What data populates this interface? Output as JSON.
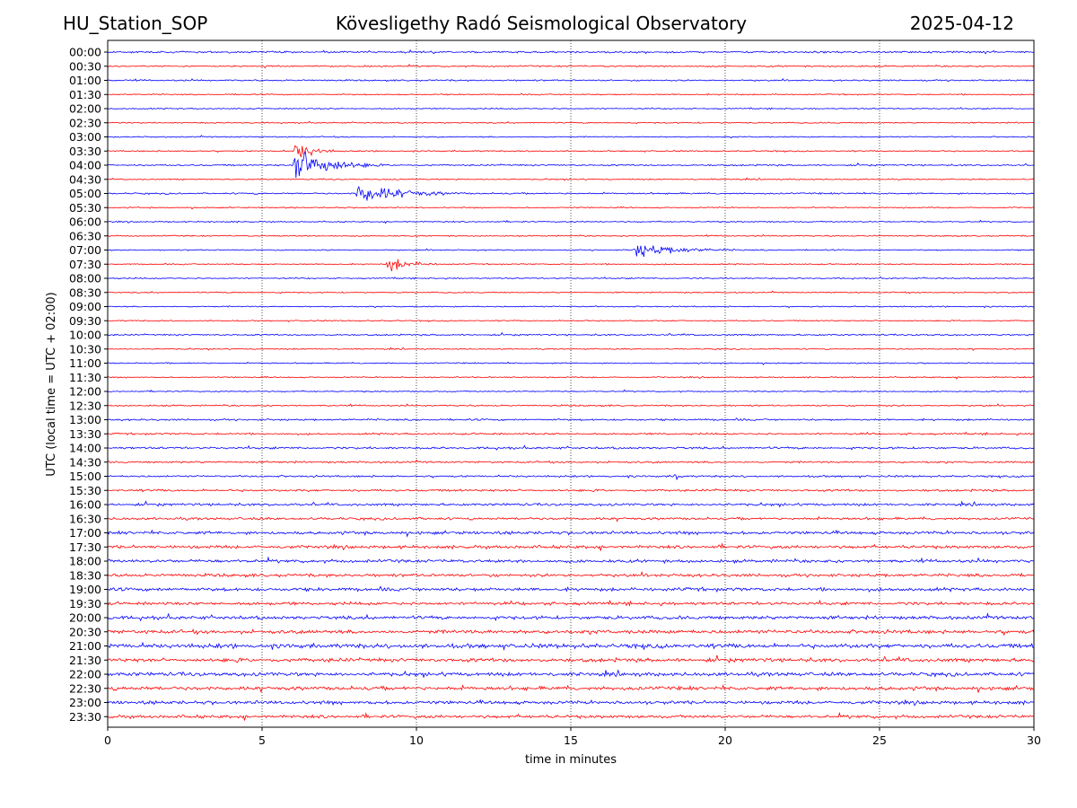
{
  "header": {
    "station": "HU_Station_SOP",
    "title": "Kövesligethy Radó Seismological Observatory",
    "date": "2025-04-12"
  },
  "chart_data": {
    "type": "line",
    "subtype": "helicorder",
    "title": "Kövesligethy Radó Seismological Observatory",
    "xlabel": "time in minutes",
    "ylabel": "UTC (local time = UTC + 02:00)",
    "xlim": [
      0,
      30
    ],
    "x_ticks": [
      0,
      5,
      10,
      15,
      20,
      25,
      30
    ],
    "grid": "vertical dotted at x ticks",
    "colors": [
      "#0000ff",
      "#ff0000"
    ],
    "rows": [
      "00:00",
      "00:30",
      "01:00",
      "01:30",
      "02:00",
      "02:30",
      "03:00",
      "03:30",
      "04:00",
      "04:30",
      "05:00",
      "05:30",
      "06:00",
      "06:30",
      "07:00",
      "07:30",
      "08:00",
      "08:30",
      "09:00",
      "09:30",
      "10:00",
      "10:30",
      "11:00",
      "11:30",
      "12:00",
      "12:30",
      "13:00",
      "13:30",
      "14:00",
      "14:30",
      "15:00",
      "15:30",
      "16:00",
      "16:30",
      "17:00",
      "17:30",
      "18:00",
      "18:30",
      "19:00",
      "19:30",
      "20:00",
      "20:30",
      "21:00",
      "21:30",
      "22:00",
      "22:30",
      "23:00",
      "23:30"
    ],
    "noise_level_by_row": [
      0.3,
      0.25,
      0.25,
      0.2,
      0.2,
      0.2,
      0.2,
      0.2,
      0.25,
      0.2,
      0.25,
      0.2,
      0.2,
      0.2,
      0.2,
      0.2,
      0.2,
      0.2,
      0.2,
      0.2,
      0.25,
      0.2,
      0.2,
      0.2,
      0.2,
      0.25,
      0.3,
      0.3,
      0.35,
      0.3,
      0.3,
      0.35,
      0.4,
      0.4,
      0.5,
      0.5,
      0.5,
      0.5,
      0.55,
      0.5,
      0.55,
      0.6,
      0.7,
      0.6,
      0.6,
      0.6,
      0.55,
      0.5
    ],
    "events": [
      {
        "row": "03:30",
        "start_min": 6.0,
        "end_min": 8.0,
        "peak_amplitude": 1.0
      },
      {
        "row": "04:00",
        "start_min": 6.0,
        "end_min": 9.0,
        "peak_amplitude": 2.6
      },
      {
        "row": "05:00",
        "start_min": 8.0,
        "end_min": 13.0,
        "peak_amplitude": 1.0
      },
      {
        "row": "07:00",
        "start_min": 17.0,
        "end_min": 22.0,
        "peak_amplitude": 0.7
      },
      {
        "row": "07:30",
        "start_min": 9.0,
        "end_min": 11.5,
        "peak_amplitude": 0.8
      },
      {
        "row": "15:00",
        "start_min": 18.3,
        "end_min": 18.9,
        "peak_amplitude": 0.8
      }
    ]
  }
}
